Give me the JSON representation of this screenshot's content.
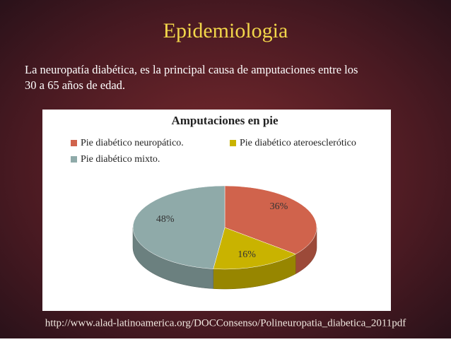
{
  "slide": {
    "title": "Epidemiologia",
    "text": [
      "La neuropatía diabética, es la principal causa de amputaciones entre los",
      "30 a 65 años de edad."
    ],
    "footer": "http://www.alad-latinoamerica.org/DOCConsenso/Polineuropatia_diabetica_2011pdf"
  },
  "chart_data": {
    "type": "pie",
    "title": "Amputaciones en pie",
    "categories": [
      "Pie diabético neuropático.",
      "Pie diabético ateroesclerótico",
      "Pie diabético mixto."
    ],
    "values": [
      36,
      16,
      48
    ],
    "value_labels": [
      "36%",
      "16%",
      "48%"
    ],
    "colors": [
      "#d0634c",
      "#c9b300",
      "#8faaa9"
    ],
    "legend": "top"
  }
}
